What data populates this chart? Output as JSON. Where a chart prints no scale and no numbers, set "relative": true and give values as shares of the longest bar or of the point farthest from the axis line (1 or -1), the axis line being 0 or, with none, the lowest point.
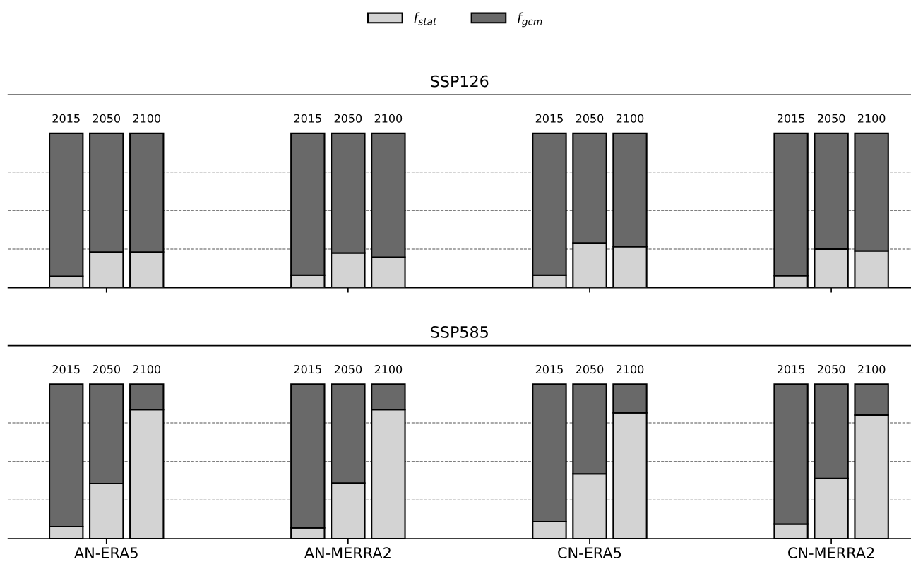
{
  "chart_data": [
    {
      "type": "bar",
      "title": "SSP126",
      "stacked": true,
      "relative": true,
      "legend": "top",
      "categories": [
        "2015",
        "2050",
        "2100",
        null,
        null,
        null,
        "2015",
        "2050",
        "2100",
        null,
        null,
        null,
        "2015",
        "2050",
        "2100",
        null,
        null,
        null,
        "2015",
        "2050",
        "2100"
      ],
      "series": [
        {
          "name": "f$_{stat}$",
          "color": "#d3d3d3",
          "values": [
            0.074,
            0.23,
            0.23,
            null,
            null,
            null,
            0.082,
            0.225,
            0.197,
            null,
            null,
            null,
            0.082,
            0.29,
            0.266,
            null,
            null,
            null,
            0.078,
            0.25,
            0.238
          ]
        },
        {
          "name": "f$_{gcm}$",
          "color": "#696969",
          "values": [
            0.926,
            0.77,
            0.77,
            null,
            null,
            null,
            0.918,
            0.775,
            0.803,
            null,
            null,
            null,
            0.918,
            0.71,
            0.734,
            null,
            null,
            null,
            0.922,
            0.75,
            0.762
          ]
        }
      ],
      "ref_lines": [
        {
          "axis": "y",
          "value": 0.25,
          "color": "#555555",
          "line_style": "dashed"
        },
        {
          "axis": "y",
          "value": 0.5,
          "color": "#555555",
          "line_style": "dashed"
        },
        {
          "axis": "y",
          "value": 0.75,
          "color": "#555555",
          "line_style": "dashed"
        }
      ]
    },
    {
      "type": "bar",
      "title": "SSP585",
      "stacked": true,
      "relative": true,
      "categories": [
        "2015",
        "2050",
        "2100",
        null,
        null,
        null,
        "2015",
        "2050",
        "2100",
        null,
        null,
        null,
        "2015",
        "2050",
        "2100",
        null,
        null,
        null,
        "2015",
        "2050",
        "2100"
      ],
      "series": [
        {
          "color": "#d3d3d3",
          "values": [
            0.078,
            0.357,
            0.836,
            null,
            null,
            null,
            0.07,
            0.36,
            0.836,
            null,
            null,
            null,
            0.11,
            0.42,
            0.815,
            null,
            null,
            null,
            0.094,
            0.39,
            0.8
          ]
        },
        {
          "color": "#696969",
          "values": [
            0.922,
            0.643,
            0.164,
            null,
            null,
            null,
            0.93,
            0.64,
            0.164,
            null,
            null,
            null,
            0.89,
            0.58,
            0.185,
            null,
            null,
            null,
            0.906,
            0.61,
            0.2
          ]
        }
      ],
      "ref_lines": [
        {
          "axis": "y",
          "value": 0.25,
          "color": "#555555",
          "line_style": "dashed"
        },
        {
          "axis": "y",
          "value": 0.5,
          "color": "#555555",
          "line_style": "dashed"
        },
        {
          "axis": "y",
          "value": 0.75,
          "color": "#555555",
          "line_style": "dashed"
        }
      ],
      "annotations": [
        "AN-ERA5",
        "AN-MERRA2",
        "CN-ERA5",
        "CN-MERRA2"
      ]
    }
  ]
}
